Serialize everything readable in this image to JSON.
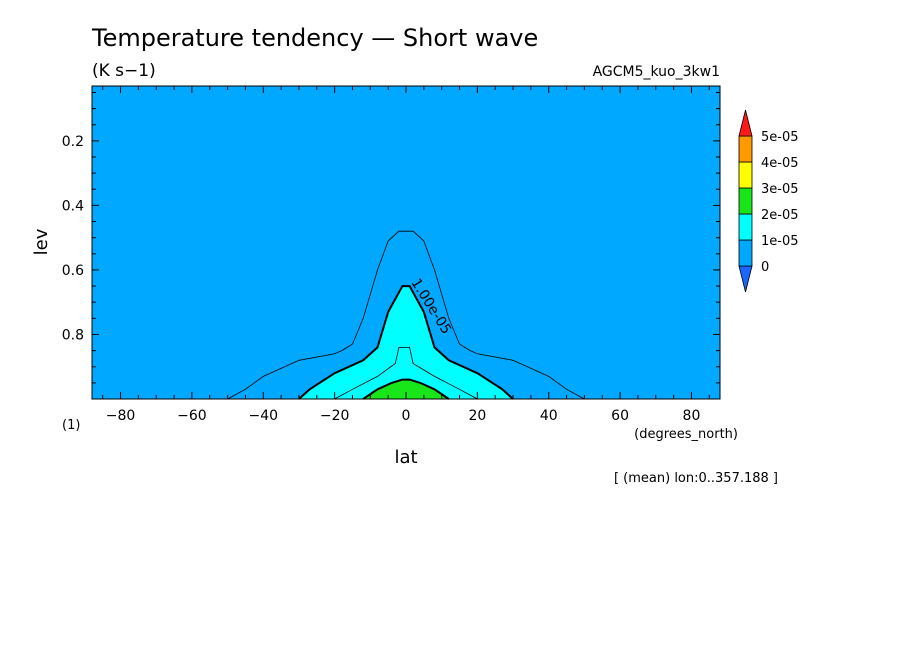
{
  "chart_data": {
    "type": "heatmap",
    "title": "Temperature tendency — Short wave",
    "units": "(K s−1)",
    "experiment": "AGCM5_kuo_3kw1",
    "xlabel": "lat",
    "x_unit_label": "(degrees_north)",
    "ylabel": "lev",
    "y_unit_label": "(1)",
    "mean_note": "[ (mean) lon:0..357.188 ]",
    "xlim": [
      -88,
      88
    ],
    "ylim": [
      0.03,
      1.0
    ],
    "y_inverted": true,
    "x_ticks": [
      -80,
      -60,
      -40,
      -20,
      0,
      20,
      40,
      60,
      80
    ],
    "x_tick_labels": [
      "−80",
      "−60",
      "−40",
      "−20",
      "0",
      "20",
      "40",
      "60",
      "80"
    ],
    "y_ticks": [
      0.2,
      0.4,
      0.6,
      0.8
    ],
    "y_tick_labels": [
      "0.2",
      "0.4",
      "0.6",
      "0.8"
    ],
    "contour_label": "1.00e-05",
    "contour_label_position": [
      6,
      0.72
    ],
    "colorbar": {
      "levels": [
        "0",
        "1e-05",
        "2e-05",
        "3e-05",
        "4e-05",
        "5e-05"
      ],
      "colors": [
        "#1a66ff",
        "#00a8ff",
        "#00ffff",
        "#19e619",
        "#ffff00",
        "#ff9900",
        "#ff1a1a"
      ],
      "extend": "both"
    },
    "filled_regions": [
      {
        "range": "0 to 1e-05",
        "color": "#00a8ff",
        "boundary": "domain"
      },
      {
        "range": "1e-05 to 2e-05",
        "color": "#00ffff",
        "boundary": [
          [
            -30,
            1.0
          ],
          [
            -27,
            0.97
          ],
          [
            -20,
            0.92
          ],
          [
            -12,
            0.88
          ],
          [
            -8,
            0.84
          ],
          [
            -5,
            0.73
          ],
          [
            -1,
            0.65
          ],
          [
            1,
            0.65
          ],
          [
            5,
            0.73
          ],
          [
            8,
            0.84
          ],
          [
            12,
            0.88
          ],
          [
            20,
            0.92
          ],
          [
            27,
            0.97
          ],
          [
            30,
            1.0
          ]
        ]
      },
      {
        "range": "2e-05 to 3e-05",
        "color": "#19e619",
        "boundary": [
          [
            -12,
            1.0
          ],
          [
            -8,
            0.97
          ],
          [
            -4,
            0.95
          ],
          [
            -1,
            0.94
          ],
          [
            1,
            0.94
          ],
          [
            4,
            0.95
          ],
          [
            8,
            0.97
          ],
          [
            12,
            1.0
          ]
        ]
      }
    ],
    "contour_lines": [
      {
        "level": "5e-06",
        "weight": "thin",
        "points": [
          [
            -50,
            1.0
          ],
          [
            -45,
            0.97
          ],
          [
            -40,
            0.93
          ],
          [
            -30,
            0.88
          ],
          [
            -20,
            0.86
          ],
          [
            -18,
            0.85
          ],
          [
            -15,
            0.83
          ],
          [
            -12,
            0.75
          ],
          [
            -8,
            0.6
          ],
          [
            -5,
            0.51
          ],
          [
            -2,
            0.48
          ],
          [
            2,
            0.48
          ],
          [
            5,
            0.51
          ],
          [
            8,
            0.6
          ],
          [
            12,
            0.75
          ],
          [
            15,
            0.83
          ],
          [
            18,
            0.85
          ],
          [
            20,
            0.86
          ],
          [
            30,
            0.88
          ],
          [
            40,
            0.93
          ],
          [
            45,
            0.97
          ],
          [
            50,
            1.0
          ]
        ]
      },
      {
        "level": "1e-05",
        "weight": "thick",
        "points": [
          [
            -30,
            1.0
          ],
          [
            -27,
            0.97
          ],
          [
            -20,
            0.92
          ],
          [
            -12,
            0.88
          ],
          [
            -8,
            0.84
          ],
          [
            -5,
            0.73
          ],
          [
            -1,
            0.65
          ],
          [
            1,
            0.65
          ],
          [
            5,
            0.73
          ],
          [
            8,
            0.84
          ],
          [
            12,
            0.88
          ],
          [
            20,
            0.92
          ],
          [
            27,
            0.97
          ],
          [
            30,
            1.0
          ]
        ]
      },
      {
        "level": "1.5e-05",
        "weight": "thin",
        "points": [
          [
            -20,
            1.0
          ],
          [
            -15,
            0.97
          ],
          [
            -8,
            0.93
          ],
          [
            -3,
            0.89
          ],
          [
            -2,
            0.84
          ],
          [
            1,
            0.84
          ],
          [
            2,
            0.89
          ],
          [
            8,
            0.93
          ],
          [
            15,
            0.97
          ],
          [
            20,
            1.0
          ]
        ]
      },
      {
        "level": "2e-05",
        "weight": "thick",
        "points": [
          [
            -12,
            1.0
          ],
          [
            -8,
            0.97
          ],
          [
            -4,
            0.95
          ],
          [
            -1,
            0.94
          ],
          [
            1,
            0.94
          ],
          [
            4,
            0.95
          ],
          [
            8,
            0.97
          ],
          [
            12,
            1.0
          ]
        ]
      }
    ]
  }
}
